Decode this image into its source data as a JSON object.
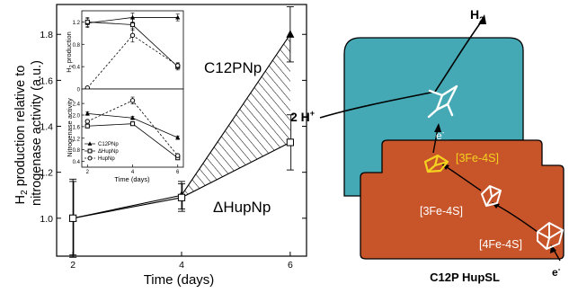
{
  "chart_data": {
    "main": {
      "type": "line",
      "x": [
        2,
        4,
        6
      ],
      "xlabel": "Time (days)",
      "ylabel": "H₂ production relative to nitrogenase activity (a.u.)",
      "xlim": [
        1.7,
        6.3
      ],
      "ylim": [
        0.835,
        1.93
      ],
      "xticks": [
        2,
        4,
        6
      ],
      "yticks": [
        1.0,
        1.2,
        1.4,
        1.6,
        1.8
      ],
      "ytick_labels": [
        "1.0",
        "1.2",
        "1.4",
        "1.6",
        "1.8"
      ],
      "series": [
        {
          "name": "C12PNp",
          "values": [
            1.0,
            1.1,
            1.8
          ],
          "errors": [
            0.17,
            0.06,
            0.12
          ],
          "marker": "filled-triangle"
        },
        {
          "name": "ΔHupNp",
          "values": [
            1.0,
            1.09,
            1.33
          ],
          "errors": [
            0.16,
            0.06,
            0.12
          ],
          "marker": "open-square"
        }
      ],
      "hatched_between_series": true,
      "annotations": [
        "C12PNp",
        "ΔHupNp"
      ]
    },
    "inset_top": {
      "type": "line",
      "x": [
        2,
        4,
        6
      ],
      "ylabel": "H₂ production",
      "ylim": [
        0.0,
        1.4
      ],
      "yticks": [
        0,
        0.4,
        0.8,
        1.2
      ],
      "ytick_labels": [
        "0",
        "0.4",
        "0.8",
        "1.2"
      ],
      "series": [
        {
          "name": "C12PNp",
          "values": [
            1.18,
            1.28,
            1.28
          ],
          "errors": [
            0.08,
            0.08,
            0.06
          ],
          "style": "solid",
          "marker": "filled-triangle"
        },
        {
          "name": "ΔHupNp",
          "values": [
            1.2,
            1.15,
            0.4
          ],
          "errors": [
            0.08,
            0.1,
            0.06
          ],
          "style": "solid",
          "marker": "open-square"
        },
        {
          "name": "HupNp",
          "values": [
            0.02,
            0.96,
            0.42
          ],
          "errors": [
            0.02,
            0.12,
            0.05
          ],
          "style": "dashed",
          "marker": "open-circle"
        }
      ]
    },
    "inset_bottom": {
      "type": "line",
      "x": [
        2,
        4,
        6
      ],
      "xlabel": "Time (days)",
      "ylabel": "Nitrogenase activity",
      "ylim": [
        0.2,
        2.9
      ],
      "yticks": [
        0.4,
        0.8,
        1.2,
        1.6,
        2.0,
        2.4
      ],
      "ytick_labels": [
        "0.4",
        "0.8",
        "1.2",
        "1.6",
        "2.0",
        "2.4"
      ],
      "series": [
        {
          "name": "C12PNp",
          "values": [
            2.05,
            1.9,
            1.22
          ],
          "errors": [
            0.06,
            0.06,
            0.06
          ],
          "style": "solid",
          "marker": "filled-triangle"
        },
        {
          "name": "ΔHupNp",
          "values": [
            1.62,
            1.7,
            0.52
          ],
          "errors": [
            0.06,
            0.06,
            0.06
          ],
          "style": "solid",
          "marker": "open-square"
        },
        {
          "name": "HupNp",
          "values": [
            1.78,
            2.5,
            0.6
          ],
          "errors": [
            0.06,
            0.12,
            0.06
          ],
          "style": "dashed",
          "marker": "open-circle"
        }
      ],
      "legend": [
        "C12PNp",
        "ΔHupNp",
        "HupNp"
      ],
      "legend_position": "bottom-left"
    }
  },
  "insets": {
    "xticks": [
      "2",
      "4",
      "6"
    ]
  },
  "diagram": {
    "h2_label": "H",
    "h2_sub": "2",
    "proton_label": "2 H",
    "proton_sup": "+",
    "electron_label_mid": "e",
    "electron_label_mid_sup": "-",
    "electron_label_bottom": "e",
    "electron_label_bottom_sup": "-",
    "cluster_3fe_top": "[3Fe-4S]",
    "cluster_3fe_mid": "[3Fe-4S]",
    "cluster_4fe": "[4Fe-4S]",
    "caption": "C12P HupSL",
    "colors": {
      "teal": "#44a9b4",
      "orange": "#c8542a",
      "highlight": "#f4d320"
    }
  }
}
